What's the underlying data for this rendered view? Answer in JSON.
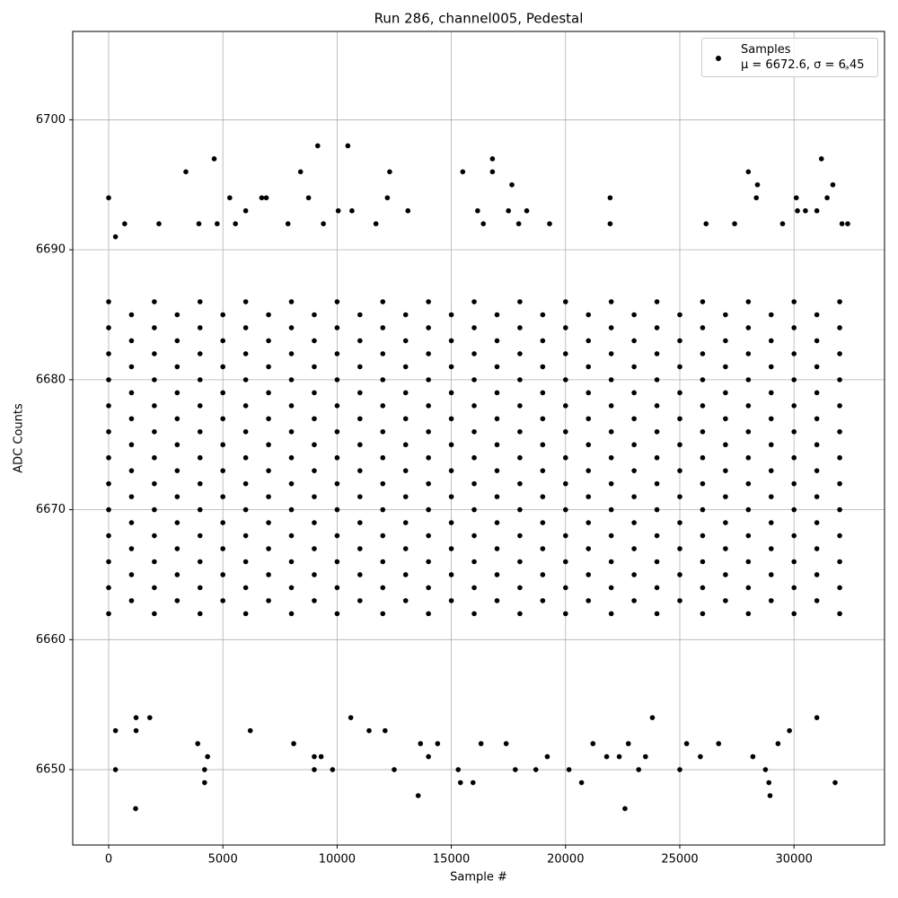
{
  "chart_data": {
    "type": "scatter",
    "title": "Run 286, channel005, Pedestal",
    "xlabel": "Sample #",
    "ylabel": "ADC Counts",
    "xlim": [
      -1572,
      33962
    ],
    "ylim": [
      6644.2,
      6706.8
    ],
    "xticks": [
      0,
      5000,
      10000,
      15000,
      20000,
      25000,
      30000
    ],
    "yticks": [
      6650,
      6660,
      6670,
      6680,
      6690,
      6700
    ],
    "grid": true,
    "legend": "upper right",
    "series": [
      {
        "name": "Samples\nμ = 6672.6, σ = 6.45",
        "color": "#000000",
        "x": [
          0,
          0,
          0,
          0,
          0,
          0,
          0,
          0,
          0,
          0,
          0,
          0,
          0,
          2000,
          2000,
          2000,
          2000,
          2000,
          2000,
          2000,
          2000,
          2000,
          2000,
          2000,
          2000,
          2000,
          4000,
          4000,
          4000,
          4000,
          4000,
          4000,
          4000,
          4000,
          4000,
          4000,
          4000,
          4000,
          4000,
          6000,
          6000,
          6000,
          6000,
          6000,
          6000,
          6000,
          6000,
          6000,
          6000,
          6000,
          6000,
          6000,
          8000,
          8000,
          8000,
          8000,
          8000,
          8000,
          8000,
          8000,
          8000,
          8000,
          8000,
          8000,
          8000,
          10000,
          10000,
          10000,
          10000,
          10000,
          10000,
          10000,
          10000,
          10000,
          10000,
          10000,
          10000,
          10000,
          12000,
          12000,
          12000,
          12000,
          12000,
          12000,
          12000,
          12000,
          12000,
          12000,
          12000,
          12000,
          12000,
          14000,
          14000,
          14000,
          14000,
          14000,
          14000,
          14000,
          14000,
          14000,
          14000,
          14000,
          14000,
          14000,
          16000,
          16000,
          16000,
          16000,
          16000,
          16000,
          16000,
          16000,
          16000,
          16000,
          16000,
          16000,
          16000,
          18000,
          18000,
          18000,
          18000,
          18000,
          18000,
          18000,
          18000,
          18000,
          18000,
          18000,
          18000,
          18000,
          20000,
          20000,
          20000,
          20000,
          20000,
          20000,
          20000,
          20000,
          20000,
          20000,
          20000,
          20000,
          20000,
          22000,
          22000,
          22000,
          22000,
          22000,
          22000,
          22000,
          22000,
          22000,
          22000,
          22000,
          22000,
          22000,
          24000,
          24000,
          24000,
          24000,
          24000,
          24000,
          24000,
          24000,
          24000,
          24000,
          24000,
          24000,
          24000,
          26000,
          26000,
          26000,
          26000,
          26000,
          26000,
          26000,
          26000,
          26000,
          26000,
          26000,
          26000,
          26000,
          28000,
          28000,
          28000,
          28000,
          28000,
          28000,
          28000,
          28000,
          28000,
          28000,
          28000,
          28000,
          28000,
          30000,
          30000,
          30000,
          30000,
          30000,
          30000,
          30000,
          30000,
          30000,
          30000,
          30000,
          30000,
          30000,
          32000,
          32000,
          32000,
          32000,
          32000,
          32000,
          32000,
          32000,
          32000,
          32000,
          32000,
          32000,
          32000,
          1000,
          1000,
          1000,
          1000,
          1000,
          1000,
          1000,
          1000,
          1000,
          1000,
          1000,
          1000,
          3000,
          3000,
          3000,
          3000,
          3000,
          3000,
          3000,
          3000,
          3000,
          3000,
          3000,
          3000,
          5000,
          5000,
          5000,
          5000,
          5000,
          5000,
          5000,
          5000,
          5000,
          5000,
          5000,
          5000,
          7000,
          7000,
          7000,
          7000,
          7000,
          7000,
          7000,
          7000,
          7000,
          7000,
          7000,
          7000,
          9000,
          9000,
          9000,
          9000,
          9000,
          9000,
          9000,
          9000,
          9000,
          9000,
          9000,
          9000,
          11000,
          11000,
          11000,
          11000,
          11000,
          11000,
          11000,
          11000,
          11000,
          11000,
          11000,
          11000,
          13000,
          13000,
          13000,
          13000,
          13000,
          13000,
          13000,
          13000,
          13000,
          13000,
          13000,
          13000,
          15000,
          15000,
          15000,
          15000,
          15000,
          15000,
          15000,
          15000,
          15000,
          15000,
          15000,
          15000,
          17000,
          17000,
          17000,
          17000,
          17000,
          17000,
          17000,
          17000,
          17000,
          17000,
          17000,
          17000,
          19000,
          19000,
          19000,
          19000,
          19000,
          19000,
          19000,
          19000,
          19000,
          19000,
          19000,
          19000,
          21000,
          21000,
          21000,
          21000,
          21000,
          21000,
          21000,
          21000,
          21000,
          21000,
          21000,
          21000,
          23000,
          23000,
          23000,
          23000,
          23000,
          23000,
          23000,
          23000,
          23000,
          23000,
          23000,
          23000,
          25000,
          25000,
          25000,
          25000,
          25000,
          25000,
          25000,
          25000,
          25000,
          25000,
          25000,
          25000,
          27000,
          27000,
          27000,
          27000,
          27000,
          27000,
          27000,
          27000,
          27000,
          27000,
          27000,
          27000,
          29000,
          29000,
          29000,
          29000,
          29000,
          29000,
          29000,
          29000,
          29000,
          29000,
          29000,
          29000,
          31000,
          31000,
          31000,
          31000,
          31000,
          31000,
          31000,
          31000,
          31000,
          31000,
          31000,
          31000,
          0,
          300,
          300,
          300,
          1180,
          1200,
          1200,
          1800,
          700,
          2200,
          3380,
          3900,
          3950,
          4200,
          4200,
          4330,
          4620,
          4750,
          5300,
          5550,
          6000,
          6200,
          6700,
          6900,
          7850,
          8100,
          8400,
          8750,
          9000,
          9000,
          9150,
          9300,
          9400,
          9800,
          10050,
          10470,
          10600,
          10650,
          11400,
          11700,
          12100,
          12200,
          12300,
          12500,
          13100,
          13550,
          13650,
          14000,
          14400,
          15300,
          15400,
          15500,
          15950,
          16150,
          16300,
          16400,
          16800,
          16800,
          17400,
          17500,
          17650,
          17800,
          17950,
          18300,
          18700,
          19200,
          19300,
          20150,
          20700,
          21200,
          21800,
          21950,
          21950,
          22350,
          22600,
          22750,
          23200,
          23500,
          23800,
          25000,
          25300,
          25900,
          26150,
          26700,
          27400,
          28000,
          28200,
          28350,
          28400,
          28750,
          28900,
          28950,
          29300,
          29500,
          29800,
          30100,
          30150,
          30500,
          31000,
          31000,
          31200,
          31450,
          31700,
          31800,
          32100,
          32300,
          32350
        ],
        "y": [
          6662,
          6664,
          6666,
          6668,
          6670,
          6672,
          6674,
          6676,
          6678,
          6680,
          6682,
          6684,
          6686,
          6662,
          6664,
          6666,
          6668,
          6670,
          6672,
          6674,
          6676,
          6678,
          6680,
          6682,
          6684,
          6686,
          6662,
          6664,
          6666,
          6668,
          6670,
          6672,
          6674,
          6676,
          6678,
          6680,
          6682,
          6684,
          6686,
          6662,
          6664,
          6666,
          6668,
          6670,
          6672,
          6674,
          6676,
          6678,
          6680,
          6682,
          6684,
          6686,
          6662,
          6664,
          6666,
          6668,
          6670,
          6672,
          6674,
          6676,
          6678,
          6680,
          6682,
          6684,
          6686,
          6662,
          6664,
          6666,
          6668,
          6670,
          6672,
          6674,
          6676,
          6678,
          6680,
          6682,
          6684,
          6686,
          6662,
          6664,
          6666,
          6668,
          6670,
          6672,
          6674,
          6676,
          6678,
          6680,
          6682,
          6684,
          6686,
          6662,
          6664,
          6666,
          6668,
          6670,
          6672,
          6674,
          6676,
          6678,
          6680,
          6682,
          6684,
          6686,
          6662,
          6664,
          6666,
          6668,
          6670,
          6672,
          6674,
          6676,
          6678,
          6680,
          6682,
          6684,
          6686,
          6662,
          6664,
          6666,
          6668,
          6670,
          6672,
          6674,
          6676,
          6678,
          6680,
          6682,
          6684,
          6686,
          6662,
          6664,
          6666,
          6668,
          6670,
          6672,
          6674,
          6676,
          6678,
          6680,
          6682,
          6684,
          6686,
          6662,
          6664,
          6666,
          6668,
          6670,
          6672,
          6674,
          6676,
          6678,
          6680,
          6682,
          6684,
          6686,
          6662,
          6664,
          6666,
          6668,
          6670,
          6672,
          6674,
          6676,
          6678,
          6680,
          6682,
          6684,
          6686,
          6662,
          6664,
          6666,
          6668,
          6670,
          6672,
          6674,
          6676,
          6678,
          6680,
          6682,
          6684,
          6686,
          6662,
          6664,
          6666,
          6668,
          6670,
          6672,
          6674,
          6676,
          6678,
          6680,
          6682,
          6684,
          6686,
          6662,
          6664,
          6666,
          6668,
          6670,
          6672,
          6674,
          6676,
          6678,
          6680,
          6682,
          6684,
          6686,
          6662,
          6664,
          6666,
          6668,
          6670,
          6672,
          6674,
          6676,
          6678,
          6680,
          6682,
          6684,
          6686,
          6663,
          6665,
          6667,
          6669,
          6671,
          6673,
          6675,
          6677,
          6679,
          6681,
          6683,
          6685,
          6663,
          6665,
          6667,
          6669,
          6671,
          6673,
          6675,
          6677,
          6679,
          6681,
          6683,
          6685,
          6663,
          6665,
          6667,
          6669,
          6671,
          6673,
          6675,
          6677,
          6679,
          6681,
          6683,
          6685,
          6663,
          6665,
          6667,
          6669,
          6671,
          6673,
          6675,
          6677,
          6679,
          6681,
          6683,
          6685,
          6663,
          6665,
          6667,
          6669,
          6671,
          6673,
          6675,
          6677,
          6679,
          6681,
          6683,
          6685,
          6663,
          6665,
          6667,
          6669,
          6671,
          6673,
          6675,
          6677,
          6679,
          6681,
          6683,
          6685,
          6663,
          6665,
          6667,
          6669,
          6671,
          6673,
          6675,
          6677,
          6679,
          6681,
          6683,
          6685,
          6663,
          6665,
          6667,
          6669,
          6671,
          6673,
          6675,
          6677,
          6679,
          6681,
          6683,
          6685,
          6663,
          6665,
          6667,
          6669,
          6671,
          6673,
          6675,
          6677,
          6679,
          6681,
          6683,
          6685,
          6663,
          6665,
          6667,
          6669,
          6671,
          6673,
          6675,
          6677,
          6679,
          6681,
          6683,
          6685,
          6663,
          6665,
          6667,
          6669,
          6671,
          6673,
          6675,
          6677,
          6679,
          6681,
          6683,
          6685,
          6663,
          6665,
          6667,
          6669,
          6671,
          6673,
          6675,
          6677,
          6679,
          6681,
          6683,
          6685,
          6663,
          6665,
          6667,
          6669,
          6671,
          6673,
          6675,
          6677,
          6679,
          6681,
          6683,
          6685,
          6663,
          6665,
          6667,
          6669,
          6671,
          6673,
          6675,
          6677,
          6679,
          6681,
          6683,
          6685,
          6663,
          6665,
          6667,
          6669,
          6671,
          6673,
          6675,
          6677,
          6679,
          6681,
          6683,
          6685,
          6663,
          6665,
          6667,
          6669,
          6671,
          6673,
          6675,
          6677,
          6679,
          6681,
          6683,
          6685,
          6694,
          6691,
          6650,
          6653,
          6647,
          6654,
          6653,
          6654,
          6692,
          6692,
          6696,
          6652,
          6692,
          6649,
          6650,
          6651,
          6697,
          6692,
          6694,
          6692,
          6693,
          6653,
          6694,
          6694,
          6692,
          6652,
          6696,
          6694,
          6650,
          6651,
          6698,
          6651,
          6692,
          6650,
          6693,
          6698,
          6654,
          6693,
          6653,
          6692,
          6653,
          6694,
          6696,
          6650,
          6693,
          6648,
          6652,
          6651,
          6652,
          6650,
          6649,
          6696,
          6649,
          6693,
          6652,
          6692,
          6697,
          6696,
          6652,
          6693,
          6695,
          6650,
          6692,
          6693,
          6650,
          6651,
          6692,
          6650,
          6649,
          6652,
          6651,
          6694,
          6692,
          6651,
          6647,
          6652,
          6650,
          6651,
          6654,
          6650,
          6652,
          6651,
          6692,
          6652,
          6692,
          6696,
          6651,
          6694,
          6695,
          6650,
          6649,
          6648,
          6652,
          6692,
          6653,
          6694,
          6693,
          6693,
          6654,
          6693,
          6697,
          6694,
          6695,
          6649,
          6692,
          6704,
          6692
        ]
      }
    ]
  }
}
